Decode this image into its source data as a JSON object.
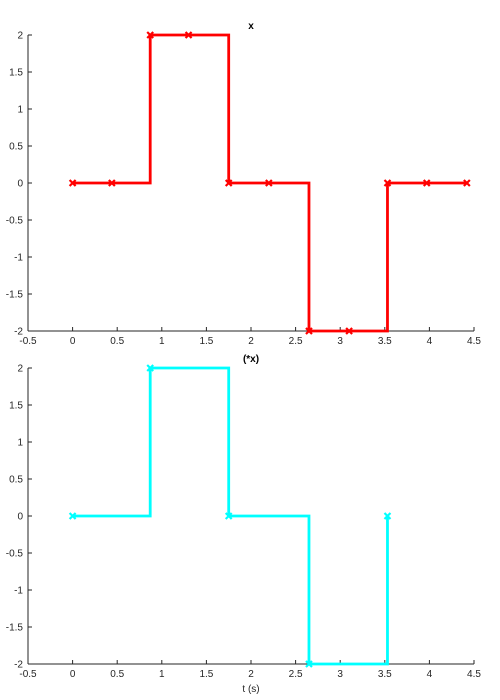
{
  "chart_data": [
    {
      "type": "line",
      "step": "post",
      "title": "x",
      "xlabel": "",
      "ylabel": "",
      "xlim": [
        -0.5,
        4.5
      ],
      "ylim": [
        -2,
        2
      ],
      "xticks": [
        -0.5,
        0,
        0.5,
        1,
        1.5,
        2,
        2.5,
        3,
        3.5,
        4,
        4.5
      ],
      "xticklabels": [
        "-0.5",
        "0",
        "0.5",
        "1",
        "1.5",
        "2",
        "2.5",
        "3",
        "3.5",
        "4",
        "4.5"
      ],
      "yticks": [
        -2,
        -1.5,
        -1,
        -0.5,
        0,
        0.5,
        1,
        1.5,
        2
      ],
      "yticklabels": [
        "-2",
        "-1.5",
        "-1",
        "-0.5",
        "0",
        "0.5",
        "1",
        "1.5",
        "2"
      ],
      "grid": false,
      "series": [
        {
          "color": "#ff0000",
          "marker": "x",
          "x": [
            0,
            0.44,
            0.87,
            1.3,
            1.75,
            2.2,
            2.65,
            3.1,
            3.53,
            3.97,
            4.42
          ],
          "y": [
            0,
            0,
            2,
            2,
            0,
            0,
            -2,
            -2,
            0,
            0,
            0
          ]
        }
      ]
    },
    {
      "type": "line",
      "step": "post",
      "title": "(*x)",
      "xlabel": "t (s)",
      "ylabel": "",
      "xlim": [
        -0.5,
        4.5
      ],
      "ylim": [
        -2,
        2
      ],
      "xticks": [
        -0.5,
        0,
        0.5,
        1,
        1.5,
        2,
        2.5,
        3,
        3.5,
        4,
        4.5
      ],
      "xticklabels": [
        "-0.5",
        "0",
        "0.5",
        "1",
        "1.5",
        "2",
        "2.5",
        "3",
        "3.5",
        "4",
        "4.5"
      ],
      "yticks": [
        -2,
        -1.5,
        -1,
        -0.5,
        0,
        0.5,
        1,
        1.5,
        2
      ],
      "yticklabels": [
        "-2",
        "-1.5",
        "-1",
        "-0.5",
        "0",
        "0.5",
        "1",
        "1.5",
        "2"
      ],
      "grid": false,
      "series": [
        {
          "color": "#00ffff",
          "marker": "x",
          "x": [
            0,
            0.87,
            1.75,
            2.65,
            3.53
          ],
          "y": [
            0,
            2,
            0,
            -2,
            0
          ]
        }
      ]
    }
  ]
}
